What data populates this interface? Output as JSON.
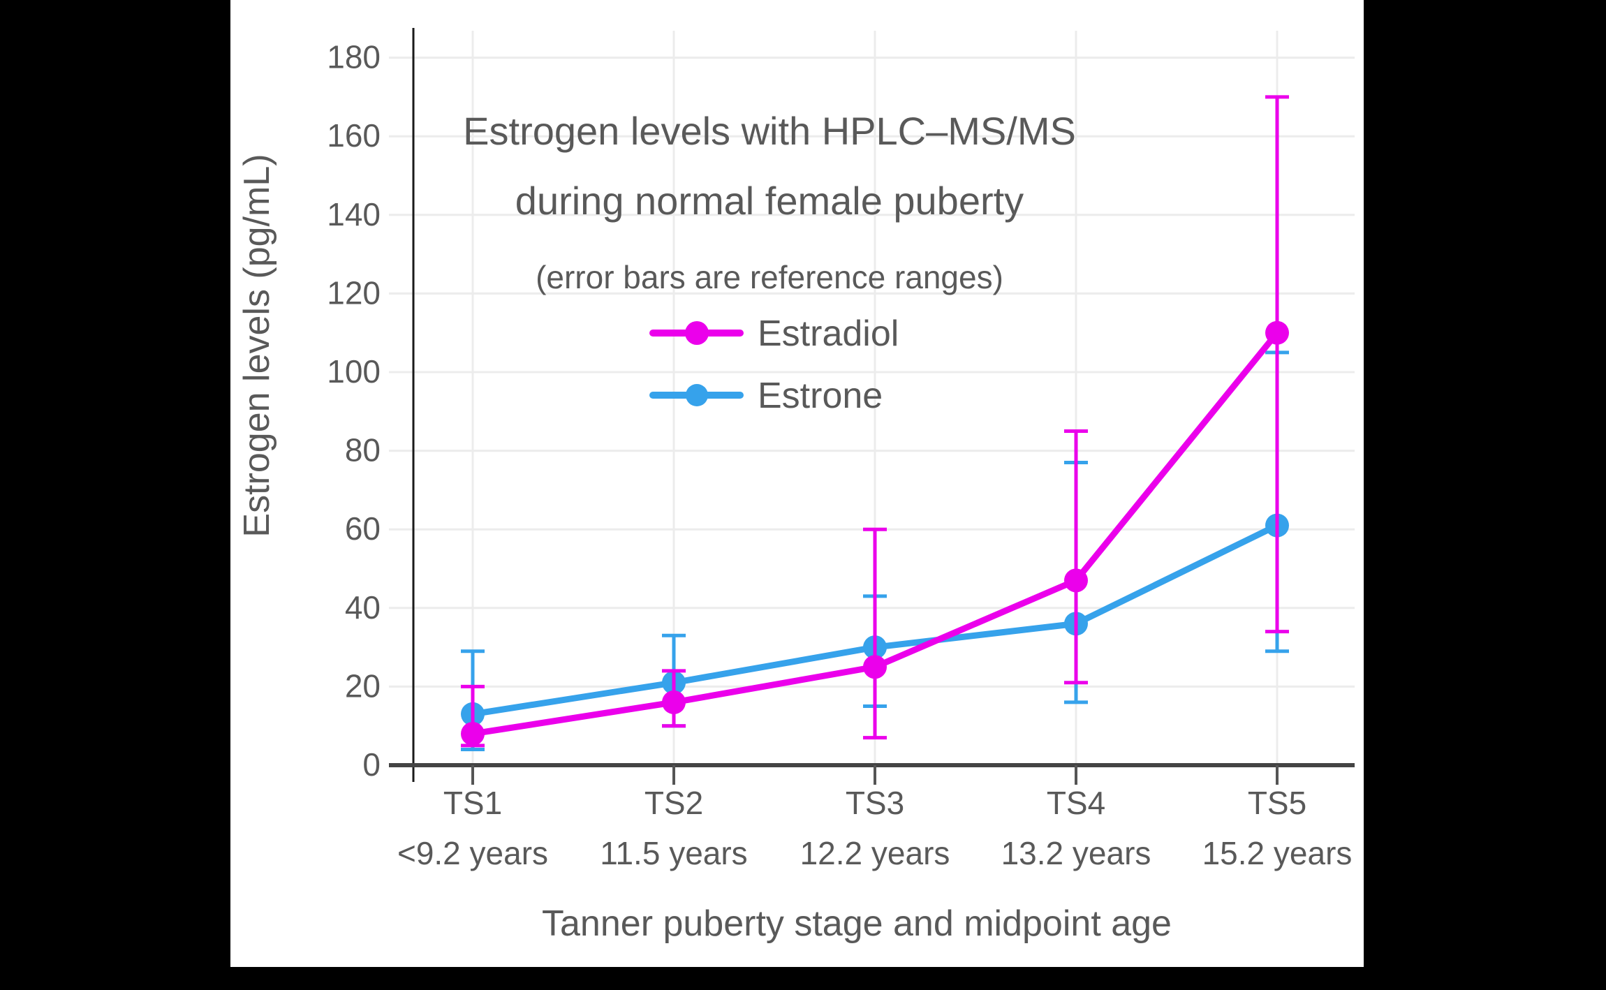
{
  "window": {
    "background_color": "#000000",
    "card_color": "#FFFFFF"
  },
  "colors": {
    "text": "#595959",
    "grid": "#ECECEC",
    "x_axis": "#444444",
    "y_spine": "#1A1A1A",
    "estradiol": "#EB00EB",
    "estrone": "#36A2EB"
  },
  "chart_data": {
    "type": "line",
    "title": "Estrogen levels with HPLC–MS/MS",
    "title_line2": "during normal female puberty",
    "subtitle": "(error bars are reference ranges)",
    "xlabel": "Tanner puberty stage and midpoint age",
    "ylabel": "Estrogen levels (pg/mL)",
    "categories": [
      "TS1",
      "TS2",
      "TS3",
      "TS4",
      "TS5"
    ],
    "category_sublabels": [
      "<9.2 years",
      "11.5 years",
      "12.2 years",
      "13.2 years",
      "15.2 years"
    ],
    "y_ticks": [
      0,
      20,
      40,
      60,
      80,
      100,
      120,
      140,
      160,
      180
    ],
    "ylim": [
      0,
      187
    ],
    "grid": true,
    "legend_position": "upper-center-inside",
    "error_bars_meaning": "reference ranges",
    "units": "pg/mL",
    "series": [
      {
        "name": "Estrone",
        "color": "#36A2EB",
        "values": [
          13,
          21,
          30,
          36,
          61
        ],
        "range_low": [
          4,
          10,
          15,
          16,
          29
        ],
        "range_high": [
          29,
          33,
          43,
          77,
          105
        ]
      },
      {
        "name": "Estradiol",
        "color": "#EB00EB",
        "values": [
          8,
          16,
          25,
          47,
          110
        ],
        "range_low": [
          5,
          10,
          7,
          21,
          34
        ],
        "range_high": [
          20,
          24,
          60,
          85,
          170
        ]
      }
    ]
  },
  "legend": {
    "estradiol_label": "Estradiol",
    "estrone_label": "Estrone"
  }
}
